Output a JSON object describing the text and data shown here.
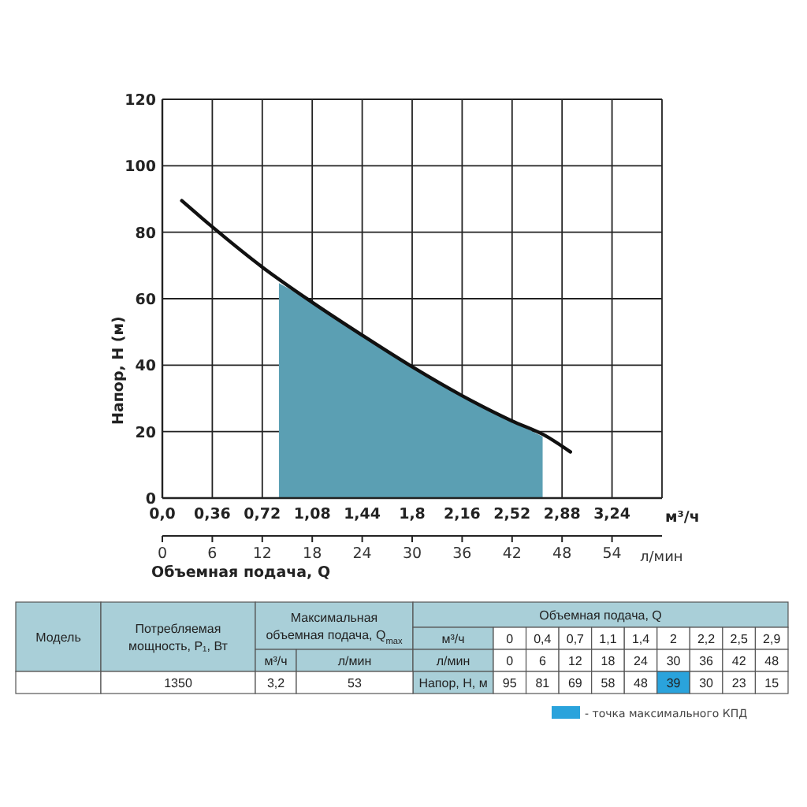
{
  "chart_data": {
    "type": "line",
    "xlabel": "Объемная подача, Q",
    "ylabel": "Напор, Н (м)",
    "x2label": "л/мин",
    "xlim": [
      0,
      3.6
    ],
    "xticks": [
      {
        "value": 0,
        "label": "0,0"
      },
      {
        "value": 0.36,
        "label": "0,36"
      },
      {
        "value": 0.72,
        "label": "0,72"
      },
      {
        "value": 1.08,
        "label": "1,08"
      },
      {
        "value": 1.44,
        "label": "1,44"
      },
      {
        "value": 1.8,
        "label": "1,8"
      },
      {
        "value": 2.16,
        "label": "2,16"
      },
      {
        "value": 2.52,
        "label": "2,52"
      },
      {
        "value": 2.88,
        "label": "2,88"
      },
      {
        "value": 3.24,
        "label": "3,24"
      }
    ],
    "x2lim": [
      0,
      60
    ],
    "x2ticks": [
      0,
      6,
      12,
      18,
      24,
      30,
      36,
      42,
      48,
      54
    ],
    "ylim": [
      0,
      120
    ],
    "yticks": [
      0,
      20,
      40,
      60,
      80,
      100,
      120
    ],
    "grid": true,
    "series": [
      {
        "type": "area",
        "color": "#5b9fb3",
        "x": [
          0.84,
          1.08,
          1.44,
          1.8,
          2.16,
          2.52,
          2.74
        ],
        "values": [
          64.7,
          59,
          49,
          39.5,
          30.8,
          23.2,
          18.5
        ]
      },
      {
        "color": "#111111",
        "x": [
          0.14,
          0.36,
          0.72,
          1.08,
          1.44,
          1.8,
          2.16,
          2.52,
          2.75,
          2.94
        ],
        "values": [
          89.5,
          81.6,
          69.5,
          58.9,
          49,
          39.5,
          30.8,
          23.2,
          19,
          13.9
        ]
      }
    ],
    "annotations": [
      "м³/ч",
      "Модель",
      "Потребляемая мощность, P₁, Вт",
      "Максимальная объемная подача, Q$_{max}$",
      "м³/ч",
      "л/мин",
      "Объемная подача, Q",
      "м³/ч",
      "0",
      "0,4",
      "0,7",
      "1,1",
      "1,4",
      "2",
      "2,2",
      "2,5",
      "2,9",
      "л/мин",
      "0",
      "6",
      "12",
      "18",
      "24",
      "30",
      "36",
      "42",
      "48",
      "Напор, Н, м",
      "95",
      "81",
      "69",
      "58",
      "48",
      "39",
      "30",
      "23",
      "15",
      "1350",
      "3,2",
      "53",
      "- точка максимального КПД"
    ]
  }
}
